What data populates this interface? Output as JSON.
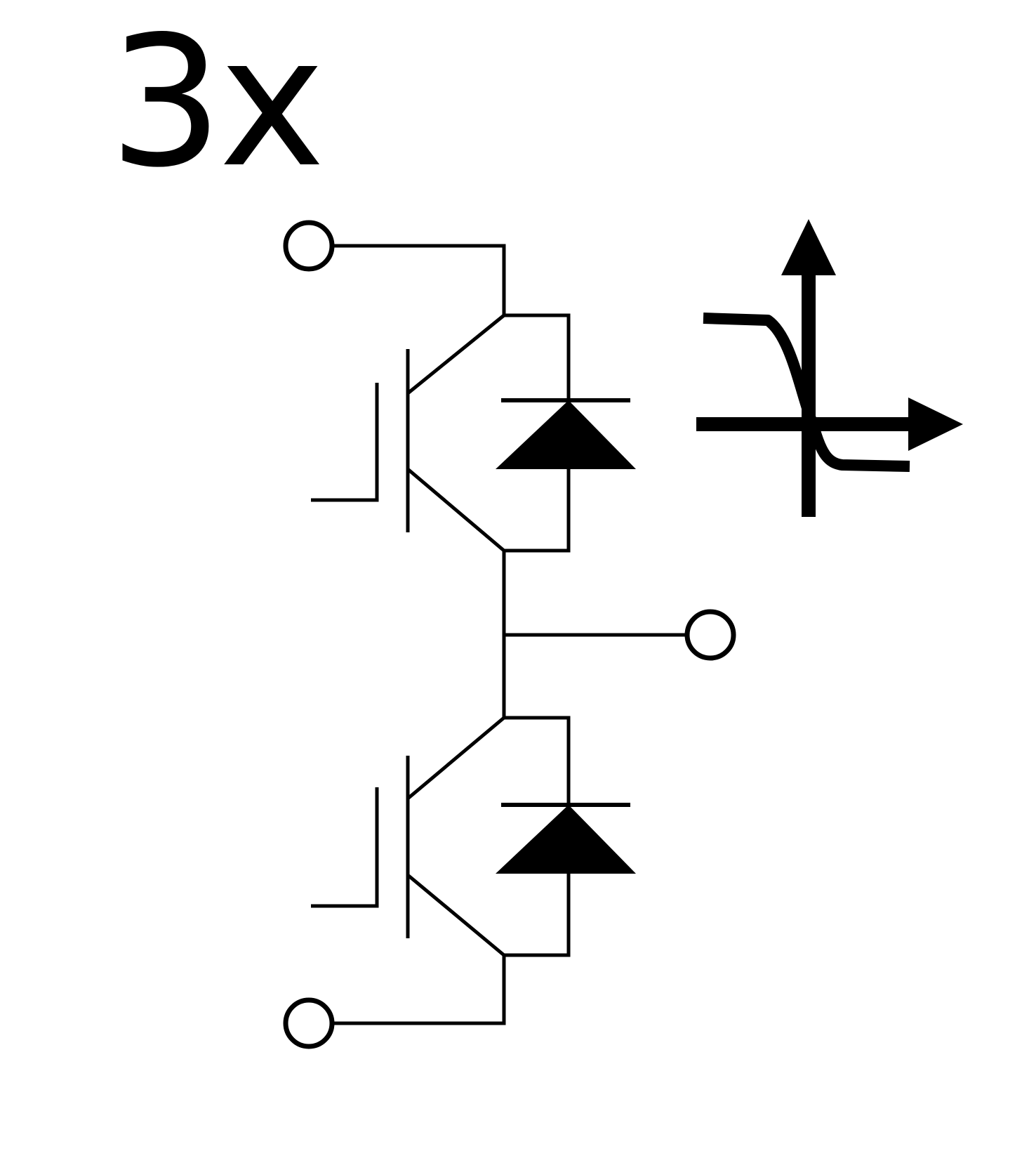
{
  "multiplier_label": "3x",
  "colors": {
    "ink": "#000000",
    "background": "#ffffff"
  },
  "components": {
    "upper_switch": "igbt-with-antiparallel-diode",
    "lower_switch": "igbt-with-antiparallel-diode",
    "terminals": [
      "top-terminal",
      "mid-terminal",
      "bottom-terminal"
    ],
    "inset_symbol": "ntc-characteristic-curve"
  }
}
